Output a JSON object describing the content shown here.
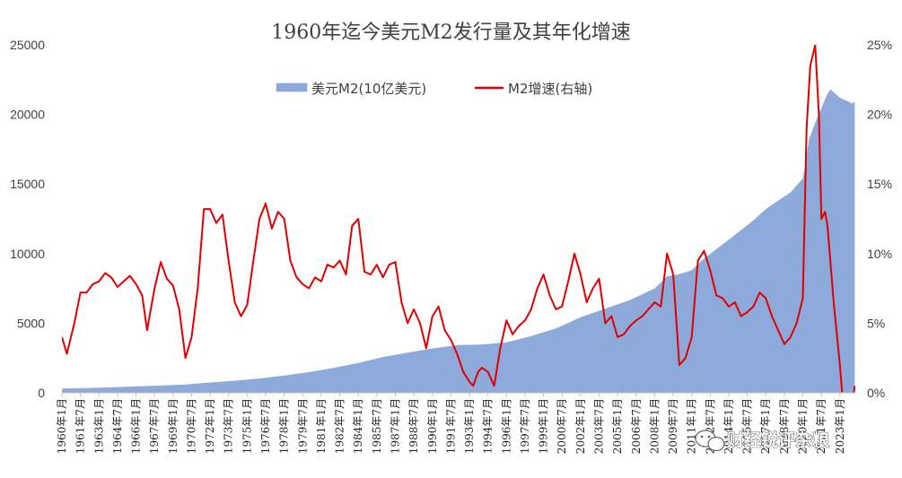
{
  "chart_data": {
    "type": "area+line",
    "title": "1960年迄今美元M2发行量及其年化增速",
    "x_start_year": 1960,
    "x_end": "2024年3月",
    "xtick_labels": [
      "1960年1月",
      "1961年7月",
      "1963年1月",
      "1964年7月",
      "1966年1月",
      "1967年7月",
      "1969年1月",
      "1970年7月",
      "1972年1月",
      "1973年7月",
      "1975年1月",
      "1976年7月",
      "1978年1月",
      "1979年7月",
      "1981年1月",
      "1982年7月",
      "1984年1月",
      "1985年7月",
      "1987年1月",
      "1988年7月",
      "1990年1月",
      "1991年7月",
      "1993年1月",
      "1994年7月",
      "1996年1月",
      "1997年7月",
      "1999年1月",
      "2000年7月",
      "2002年1月",
      "2003年7月",
      "2005年1月",
      "2006年7月",
      "2008年1月",
      "2009年7月",
      "2011年1月",
      "2012年7月",
      "2014年1月",
      "2015年7月",
      "2017年1月",
      "2018年7月",
      "2020年1月",
      "2021年7月",
      "2023年1月"
    ],
    "y_left": {
      "ylim": [
        0,
        25000
      ],
      "ticks": [
        "0",
        "5000",
        "10000",
        "15000",
        "20000",
        "25000"
      ]
    },
    "y_right": {
      "ylim": [
        0,
        0.25
      ],
      "ticks": [
        "0%",
        "5%",
        "10%",
        "15%",
        "20%",
        "25%"
      ]
    },
    "series": [
      {
        "name": "美元M2(10亿美元)",
        "kind": "area",
        "axis": "left",
        "color": "#8eaadb",
        "points": [
          [
            1960.0,
            300
          ],
          [
            1962.0,
            335
          ],
          [
            1964.0,
            390
          ],
          [
            1966.0,
            460
          ],
          [
            1968.0,
            520
          ],
          [
            1970.0,
            590
          ],
          [
            1972.0,
            740
          ],
          [
            1974.0,
            870
          ],
          [
            1976.0,
            1030
          ],
          [
            1978.0,
            1240
          ],
          [
            1980.0,
            1480
          ],
          [
            1982.0,
            1790
          ],
          [
            1984.0,
            2140
          ],
          [
            1986.0,
            2570
          ],
          [
            1988.0,
            2880
          ],
          [
            1990.0,
            3190
          ],
          [
            1992.0,
            3430
          ],
          [
            1994.0,
            3470
          ],
          [
            1996.0,
            3620
          ],
          [
            1998.0,
            4070
          ],
          [
            2000.0,
            4620
          ],
          [
            2002.0,
            5430
          ],
          [
            2004.0,
            6050
          ],
          [
            2006.0,
            6660
          ],
          [
            2008.0,
            7500
          ],
          [
            2009.0,
            8370
          ],
          [
            2010.0,
            8530
          ],
          [
            2011.0,
            8800
          ],
          [
            2012.0,
            9660
          ],
          [
            2014.0,
            11000
          ],
          [
            2016.0,
            12400
          ],
          [
            2017.0,
            13200
          ],
          [
            2018.0,
            13800
          ],
          [
            2019.0,
            14400
          ],
          [
            2020.0,
            15400
          ],
          [
            2020.25,
            16700
          ],
          [
            2020.5,
            18200
          ],
          [
            2021.0,
            19400
          ],
          [
            2022.0,
            21500
          ],
          [
            2022.25,
            21800
          ],
          [
            2023.0,
            21200
          ],
          [
            2024.0,
            20800
          ],
          [
            2024.2,
            20900
          ]
        ]
      },
      {
        "name": "M2增速(右轴)",
        "kind": "line",
        "axis": "right",
        "color": "#e00000",
        "points": [
          [
            1960.0,
            0.04
          ],
          [
            1960.4,
            0.028
          ],
          [
            1961.0,
            0.05
          ],
          [
            1961.5,
            0.072
          ],
          [
            1962.0,
            0.072
          ],
          [
            1962.5,
            0.078
          ],
          [
            1963.0,
            0.08
          ],
          [
            1963.5,
            0.086
          ],
          [
            1964.0,
            0.083
          ],
          [
            1964.5,
            0.076
          ],
          [
            1965.0,
            0.08
          ],
          [
            1965.5,
            0.084
          ],
          [
            1966.0,
            0.078
          ],
          [
            1966.5,
            0.07
          ],
          [
            1966.9,
            0.045
          ],
          [
            1967.5,
            0.075
          ],
          [
            1968.0,
            0.094
          ],
          [
            1968.5,
            0.082
          ],
          [
            1969.0,
            0.077
          ],
          [
            1969.5,
            0.06
          ],
          [
            1970.0,
            0.025
          ],
          [
            1970.5,
            0.04
          ],
          [
            1971.0,
            0.075
          ],
          [
            1971.5,
            0.132
          ],
          [
            1972.0,
            0.132
          ],
          [
            1972.5,
            0.122
          ],
          [
            1973.0,
            0.128
          ],
          [
            1973.5,
            0.095
          ],
          [
            1974.0,
            0.065
          ],
          [
            1974.5,
            0.055
          ],
          [
            1975.0,
            0.063
          ],
          [
            1975.5,
            0.095
          ],
          [
            1976.0,
            0.125
          ],
          [
            1976.5,
            0.136
          ],
          [
            1977.0,
            0.118
          ],
          [
            1977.5,
            0.13
          ],
          [
            1978.0,
            0.125
          ],
          [
            1978.5,
            0.095
          ],
          [
            1979.0,
            0.083
          ],
          [
            1979.5,
            0.078
          ],
          [
            1980.0,
            0.075
          ],
          [
            1980.5,
            0.083
          ],
          [
            1981.0,
            0.08
          ],
          [
            1981.5,
            0.092
          ],
          [
            1982.0,
            0.09
          ],
          [
            1982.5,
            0.095
          ],
          [
            1983.0,
            0.085
          ],
          [
            1983.5,
            0.12
          ],
          [
            1984.0,
            0.125
          ],
          [
            1984.5,
            0.087
          ],
          [
            1985.0,
            0.085
          ],
          [
            1985.5,
            0.092
          ],
          [
            1986.0,
            0.083
          ],
          [
            1986.5,
            0.092
          ],
          [
            1987.0,
            0.094
          ],
          [
            1987.5,
            0.065
          ],
          [
            1988.0,
            0.05
          ],
          [
            1988.5,
            0.06
          ],
          [
            1989.0,
            0.05
          ],
          [
            1989.5,
            0.032
          ],
          [
            1990.0,
            0.055
          ],
          [
            1990.5,
            0.062
          ],
          [
            1991.0,
            0.045
          ],
          [
            1991.5,
            0.038
          ],
          [
            1992.0,
            0.028
          ],
          [
            1992.5,
            0.015
          ],
          [
            1993.0,
            0.008
          ],
          [
            1993.3,
            0.005
          ],
          [
            1993.7,
            0.015
          ],
          [
            1994.0,
            0.018
          ],
          [
            1994.5,
            0.015
          ],
          [
            1995.0,
            0.005
          ],
          [
            1995.5,
            0.032
          ],
          [
            1996.0,
            0.052
          ],
          [
            1996.5,
            0.042
          ],
          [
            1997.0,
            0.048
          ],
          [
            1997.5,
            0.052
          ],
          [
            1998.0,
            0.06
          ],
          [
            1998.5,
            0.075
          ],
          [
            1999.0,
            0.085
          ],
          [
            1999.5,
            0.07
          ],
          [
            2000.0,
            0.06
          ],
          [
            2000.5,
            0.062
          ],
          [
            2001.0,
            0.08
          ],
          [
            2001.5,
            0.1
          ],
          [
            2002.0,
            0.085
          ],
          [
            2002.5,
            0.065
          ],
          [
            2003.0,
            0.075
          ],
          [
            2003.5,
            0.082
          ],
          [
            2004.0,
            0.05
          ],
          [
            2004.5,
            0.055
          ],
          [
            2005.0,
            0.04
          ],
          [
            2005.5,
            0.042
          ],
          [
            2006.0,
            0.048
          ],
          [
            2006.5,
            0.052
          ],
          [
            2007.0,
            0.055
          ],
          [
            2007.5,
            0.06
          ],
          [
            2008.0,
            0.065
          ],
          [
            2008.5,
            0.062
          ],
          [
            2009.0,
            0.1
          ],
          [
            2009.5,
            0.085
          ],
          [
            2010.0,
            0.02
          ],
          [
            2010.5,
            0.025
          ],
          [
            2011.0,
            0.04
          ],
          [
            2011.5,
            0.095
          ],
          [
            2012.0,
            0.102
          ],
          [
            2012.5,
            0.088
          ],
          [
            2013.0,
            0.07
          ],
          [
            2013.5,
            0.068
          ],
          [
            2014.0,
            0.062
          ],
          [
            2014.5,
            0.065
          ],
          [
            2015.0,
            0.055
          ],
          [
            2015.5,
            0.058
          ],
          [
            2016.0,
            0.062
          ],
          [
            2016.5,
            0.072
          ],
          [
            2017.0,
            0.068
          ],
          [
            2017.5,
            0.055
          ],
          [
            2018.0,
            0.045
          ],
          [
            2018.5,
            0.035
          ],
          [
            2019.0,
            0.04
          ],
          [
            2019.5,
            0.05
          ],
          [
            2020.0,
            0.068
          ],
          [
            2020.3,
            0.19
          ],
          [
            2020.6,
            0.235
          ],
          [
            2021.0,
            0.25
          ],
          [
            2021.3,
            0.2
          ],
          [
            2021.5,
            0.125
          ],
          [
            2021.8,
            0.13
          ],
          [
            2022.0,
            0.12
          ],
          [
            2022.5,
            0.065
          ],
          [
            2023.0,
            0.02
          ],
          [
            2023.5,
            -0.035
          ],
          [
            2024.0,
            -0.01
          ],
          [
            2024.2,
            0.005
          ]
        ]
      }
    ],
    "legend_position": "top-center",
    "grid": false
  },
  "watermark": {
    "icon": "wechat-icon",
    "text": "财经锐评杂粮"
  }
}
